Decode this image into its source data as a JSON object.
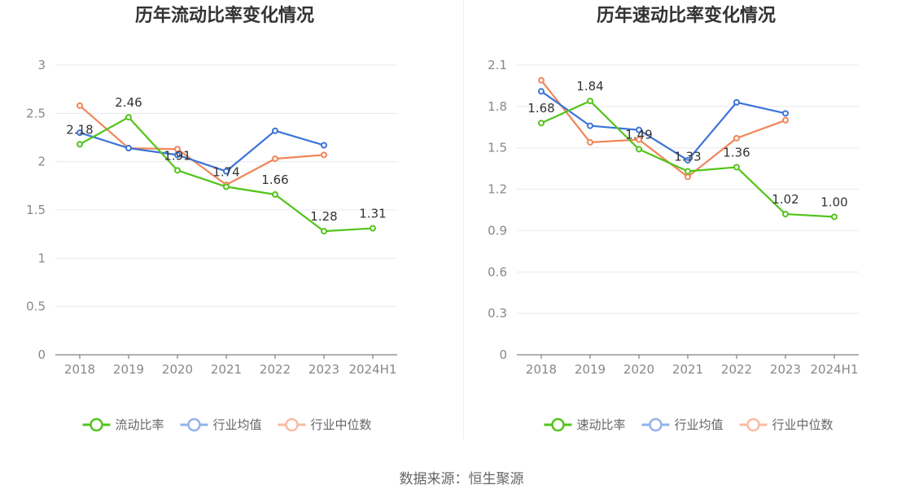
{
  "footer": {
    "source": "数据来源：恒生聚源"
  },
  "chart_data": [
    {
      "type": "line",
      "title": "历年流动比率变化情况",
      "categories": [
        "2018",
        "2019",
        "2020",
        "2021",
        "2022",
        "2023",
        "2024H1"
      ],
      "ylim": [
        0,
        3
      ],
      "yticks": [
        "0",
        "0.5",
        "1",
        "1.5",
        "2",
        "2.5",
        "3"
      ],
      "grid": true,
      "legend_position": "bottom-center",
      "series": [
        {
          "name": "流动比率",
          "color": "#52c41a",
          "values": [
            2.18,
            2.46,
            1.91,
            1.74,
            1.66,
            1.28,
            1.31
          ],
          "labels": [
            "2.18",
            "2.46",
            "1.91",
            "1.74",
            "1.66",
            "1.28",
            "1.31"
          ]
        },
        {
          "name": "行业均值",
          "color": "#3b73d8",
          "values": [
            2.3,
            2.14,
            2.07,
            1.9,
            2.32,
            2.17,
            null
          ]
        },
        {
          "name": "行业中位数",
          "color": "#f0855a",
          "values": [
            2.58,
            2.14,
            2.13,
            1.76,
            2.03,
            2.07,
            null
          ]
        }
      ]
    },
    {
      "type": "line",
      "title": "历年速动比率变化情况",
      "categories": [
        "2018",
        "2019",
        "2020",
        "2021",
        "2022",
        "2023",
        "2024H1"
      ],
      "ylim": [
        0,
        2.1
      ],
      "yticks": [
        "0",
        "0.3",
        "0.6",
        "0.9",
        "1.2",
        "1.5",
        "1.8",
        "2.1"
      ],
      "grid": true,
      "legend_position": "bottom-center",
      "series": [
        {
          "name": "速动比率",
          "color": "#52c41a",
          "values": [
            1.68,
            1.84,
            1.49,
            1.33,
            1.36,
            1.02,
            1.0
          ],
          "labels": [
            "1.68",
            "1.84",
            "1.49",
            "1.33",
            "1.36",
            "1.02",
            "1.00"
          ]
        },
        {
          "name": "行业均值",
          "color": "#3b73d8",
          "values": [
            1.91,
            1.66,
            1.63,
            1.41,
            1.83,
            1.75,
            null
          ]
        },
        {
          "name": "行业中位数",
          "color": "#f0855a",
          "values": [
            1.99,
            1.54,
            1.56,
            1.29,
            1.57,
            1.7,
            null
          ]
        }
      ]
    }
  ]
}
